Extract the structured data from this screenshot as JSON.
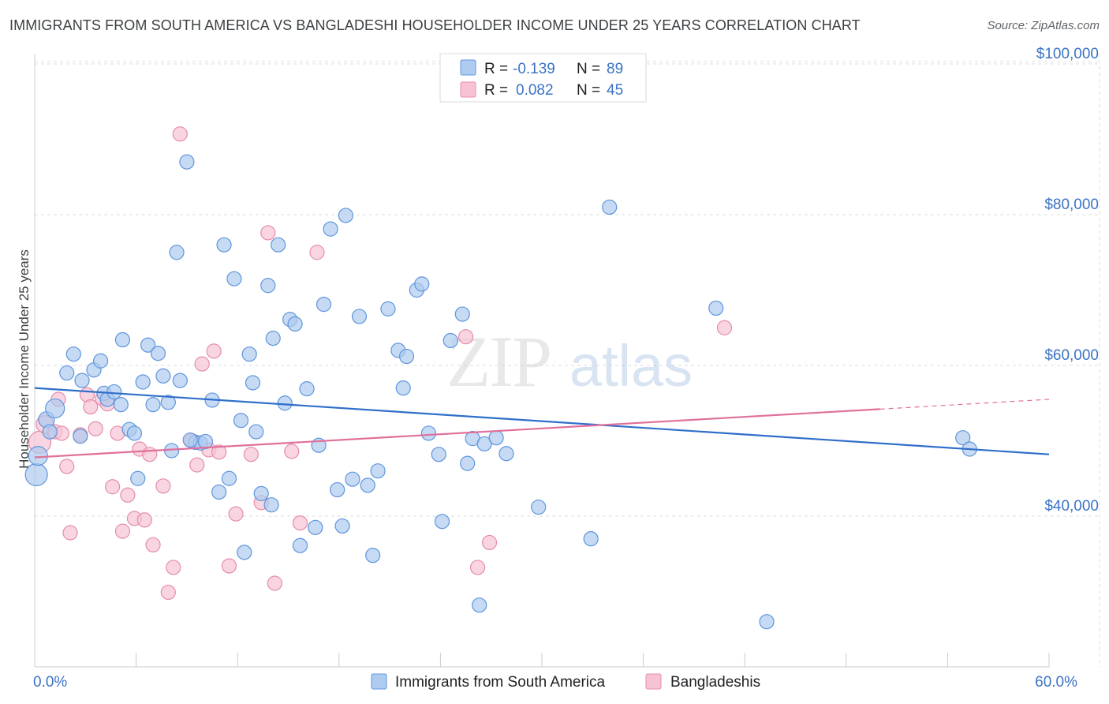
{
  "title": "IMMIGRANTS FROM SOUTH AMERICA VS BANGLADESHI HOUSEHOLDER INCOME UNDER 25 YEARS CORRELATION CHART",
  "source": "Source: ZipAtlas.com",
  "watermark": {
    "zip": "ZIP",
    "atlas": "atlas"
  },
  "legend_box": {
    "rows": [
      {
        "r_label": "R =",
        "r_value": "-0.139",
        "n_label": "N =",
        "n_value": "89",
        "color": "#aecbf0",
        "stroke": "#6a9fe0"
      },
      {
        "r_label": "R =",
        "r_value": "0.082",
        "n_label": "N =",
        "n_value": "45",
        "color": "#f7c3d4",
        "stroke": "#e98aaa"
      }
    ]
  },
  "colors": {
    "blue_fill": "#aecbf0",
    "blue_stroke": "#5f96dc",
    "blue_line": "#2f6fca",
    "pink_fill": "#f7c3d4",
    "pink_stroke": "#e68cab",
    "pink_line": "#e0709b",
    "axis_label": "#3b73c6",
    "grid": "#d9dce0"
  },
  "chart_data": {
    "type": "scatter",
    "title": "IMMIGRANTS FROM SOUTH AMERICA VS BANGLADESHI HOUSEHOLDER INCOME UNDER 25 YEARS CORRELATION CHART",
    "xlabel": "",
    "ylabel": "Householder Income Under 25 years",
    "xlim": [
      0,
      60
    ],
    "ylim": [
      22000,
      102000
    ],
    "x_tick_labels": [
      {
        "value": 0,
        "label": "0.0%"
      },
      {
        "value": 60,
        "label": "60.0%"
      }
    ],
    "y_ticks": [
      {
        "value": 40000,
        "label": "$40,000"
      },
      {
        "value": 60000,
        "label": "$60,000"
      },
      {
        "value": 80000,
        "label": "$80,000"
      },
      {
        "value": 100000,
        "label": "$100,000"
      }
    ],
    "legend": [
      "Immigrants from South America",
      "Bangladeshis"
    ],
    "series": [
      {
        "name": "Immigrants from South America",
        "r": -0.139,
        "n": 89,
        "trend": {
          "x": [
            0,
            60
          ],
          "y": [
            57000,
            48200
          ]
        },
        "points": [
          [
            0.1,
            45500,
            14
          ],
          [
            0.2,
            48000,
            12
          ],
          [
            0.7,
            52800,
            10
          ],
          [
            1.2,
            54300,
            12
          ],
          [
            0.9,
            51200,
            9
          ],
          [
            1.9,
            59000,
            9
          ],
          [
            2.3,
            61500,
            9
          ],
          [
            2.7,
            50600,
            9
          ],
          [
            2.8,
            58000,
            9
          ],
          [
            3.5,
            59400,
            9
          ],
          [
            3.9,
            60600,
            9
          ],
          [
            4.1,
            56300,
            9
          ],
          [
            4.3,
            55500,
            9
          ],
          [
            4.7,
            56500,
            9
          ],
          [
            5.1,
            54800,
            9
          ],
          [
            5.2,
            63400,
            9
          ],
          [
            5.6,
            51500,
            9
          ],
          [
            5.9,
            51000,
            9
          ],
          [
            6.1,
            45000,
            9
          ],
          [
            6.4,
            57800,
            9
          ],
          [
            6.7,
            62700,
            9
          ],
          [
            7.0,
            54800,
            9
          ],
          [
            7.3,
            61600,
            9
          ],
          [
            7.6,
            58600,
            9
          ],
          [
            7.9,
            55100,
            9
          ],
          [
            8.1,
            48700,
            9
          ],
          [
            8.4,
            75000,
            9
          ],
          [
            8.6,
            58000,
            9
          ],
          [
            9.0,
            87000,
            9
          ],
          [
            9.5,
            49800,
            9
          ],
          [
            9.8,
            49700,
            9
          ],
          [
            10.1,
            49900,
            9
          ],
          [
            10.5,
            55400,
            9
          ],
          [
            10.9,
            43200,
            9
          ],
          [
            11.2,
            76000,
            9
          ],
          [
            11.5,
            45000,
            9
          ],
          [
            11.8,
            71500,
            9
          ],
          [
            12.2,
            52700,
            9
          ],
          [
            12.4,
            35200,
            9
          ],
          [
            12.7,
            61500,
            9
          ],
          [
            12.9,
            57700,
            9
          ],
          [
            13.1,
            51200,
            9
          ],
          [
            13.4,
            43000,
            9
          ],
          [
            13.8,
            70600,
            9
          ],
          [
            14.1,
            63600,
            9
          ],
          [
            14.4,
            76000,
            9
          ],
          [
            14.8,
            55000,
            9
          ],
          [
            15.1,
            66100,
            9
          ],
          [
            15.4,
            65500,
            9
          ],
          [
            15.7,
            36100,
            9
          ],
          [
            16.1,
            56900,
            9
          ],
          [
            16.6,
            38500,
            9
          ],
          [
            16.8,
            49400,
            9
          ],
          [
            17.1,
            68100,
            9
          ],
          [
            17.5,
            78100,
            9
          ],
          [
            17.9,
            43500,
            9
          ],
          [
            18.2,
            38700,
            9
          ],
          [
            18.4,
            79900,
            9
          ],
          [
            18.8,
            44900,
            9
          ],
          [
            19.2,
            66500,
            9
          ],
          [
            19.7,
            44100,
            9
          ],
          [
            20.0,
            34800,
            9
          ],
          [
            20.3,
            46000,
            9
          ],
          [
            20.9,
            67500,
            9
          ],
          [
            21.5,
            62000,
            9
          ],
          [
            21.8,
            57000,
            9
          ],
          [
            22.0,
            61200,
            9
          ],
          [
            22.6,
            70000,
            9
          ],
          [
            22.9,
            70800,
            9
          ],
          [
            23.3,
            51000,
            9
          ],
          [
            23.9,
            48200,
            9
          ],
          [
            24.1,
            39300,
            9
          ],
          [
            24.6,
            63300,
            9
          ],
          [
            25.3,
            66800,
            9
          ],
          [
            25.6,
            47000,
            9
          ],
          [
            25.9,
            50300,
            9
          ],
          [
            26.3,
            28200,
            9
          ],
          [
            26.6,
            49600,
            9
          ],
          [
            27.3,
            50400,
            9
          ],
          [
            27.9,
            48300,
            9
          ],
          [
            29.8,
            41200,
            9
          ],
          [
            32.9,
            37000,
            9
          ],
          [
            34.0,
            81000,
            9
          ],
          [
            40.3,
            67600,
            9
          ],
          [
            43.3,
            26000,
            9
          ],
          [
            54.9,
            50400,
            9
          ],
          [
            55.3,
            48900,
            9
          ],
          [
            14.0,
            41500,
            9
          ],
          [
            9.2,
            50100,
            9
          ]
        ]
      },
      {
        "name": "Bangladeshis",
        "r": 0.082,
        "n": 45,
        "trend": {
          "x": [
            0,
            50
          ],
          "y": [
            47800,
            54200
          ]
        },
        "trend_dashed": {
          "x": [
            50,
            60
          ],
          "y": [
            54200,
            55500
          ]
        },
        "points": [
          [
            0.3,
            49800,
            14
          ],
          [
            0.6,
            52200,
            11
          ],
          [
            1.2,
            51200,
            9
          ],
          [
            1.4,
            55500,
            9
          ],
          [
            1.6,
            51000,
            9
          ],
          [
            1.9,
            46600,
            9
          ],
          [
            2.1,
            37800,
            9
          ],
          [
            2.7,
            50800,
            9
          ],
          [
            3.1,
            56100,
            9
          ],
          [
            3.3,
            54500,
            9
          ],
          [
            3.6,
            51600,
            9
          ],
          [
            4.0,
            55600,
            9
          ],
          [
            4.3,
            54900,
            9
          ],
          [
            4.6,
            43900,
            9
          ],
          [
            4.9,
            51000,
            9
          ],
          [
            5.2,
            38000,
            9
          ],
          [
            5.5,
            42800,
            9
          ],
          [
            5.9,
            39700,
            9
          ],
          [
            6.2,
            48900,
            9
          ],
          [
            6.5,
            39500,
            9
          ],
          [
            6.8,
            48200,
            9
          ],
          [
            7.0,
            36200,
            9
          ],
          [
            7.6,
            44000,
            9
          ],
          [
            7.9,
            29900,
            9
          ],
          [
            8.2,
            33200,
            9
          ],
          [
            8.6,
            90700,
            9
          ],
          [
            9.3,
            50000,
            9
          ],
          [
            9.6,
            46800,
            9
          ],
          [
            9.9,
            60200,
            9
          ],
          [
            10.3,
            48800,
            9
          ],
          [
            10.6,
            61900,
            9
          ],
          [
            10.9,
            48500,
            9
          ],
          [
            11.5,
            33400,
            9
          ],
          [
            11.9,
            40300,
            9
          ],
          [
            12.8,
            48200,
            9
          ],
          [
            13.4,
            41800,
            9
          ],
          [
            13.8,
            77600,
            9
          ],
          [
            14.2,
            31100,
            9
          ],
          [
            15.2,
            48600,
            9
          ],
          [
            15.7,
            39100,
            9
          ],
          [
            16.7,
            75000,
            9
          ],
          [
            25.5,
            63800,
            9
          ],
          [
            26.2,
            33200,
            9
          ],
          [
            26.9,
            36500,
            9
          ],
          [
            40.8,
            65000,
            9
          ]
        ]
      }
    ]
  }
}
